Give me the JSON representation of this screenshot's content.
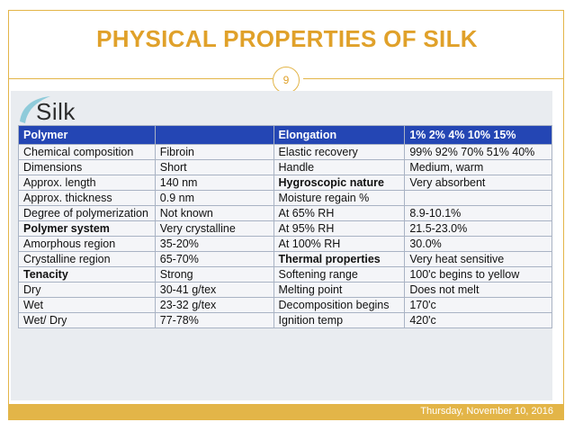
{
  "slide": {
    "title": "PHYSICAL PROPERTIES OF SILK",
    "page_number": "9",
    "date": "Thursday, November 10, 2016"
  },
  "logo": {
    "text": "Silk"
  },
  "table": {
    "header": [
      "Polymer",
      "",
      "Elongation",
      "1% 2% 4% 10% 15%"
    ],
    "rows": [
      {
        "cells": [
          "Chemical composition",
          "Fibroin",
          "Elastic recovery",
          "99% 92% 70% 51% 40%"
        ],
        "bold": []
      },
      {
        "cells": [
          "Dimensions",
          "Short",
          "Handle",
          "Medium, warm"
        ],
        "bold": []
      },
      {
        "cells": [
          "Approx. length",
          "140 nm",
          "Hygroscopic nature",
          "Very absorbent"
        ],
        "bold": [
          2
        ]
      },
      {
        "cells": [
          "Approx. thickness",
          "0.9 nm",
          "Moisture regain %",
          ""
        ],
        "bold": []
      },
      {
        "cells": [
          "Degree of polymerization",
          "Not known",
          "At 65% RH",
          "8.9-10.1%"
        ],
        "bold": []
      },
      {
        "cells": [
          "Polymer system",
          "Very crystalline",
          "At 95% RH",
          "21.5-23.0%"
        ],
        "bold": [
          0
        ]
      },
      {
        "cells": [
          "Amorphous region",
          "35-20%",
          "At 100% RH",
          "30.0%"
        ],
        "bold": []
      },
      {
        "cells": [
          "Crystalline region",
          "65-70%",
          "Thermal properties",
          "Very heat sensitive"
        ],
        "bold": [
          2
        ]
      },
      {
        "cells": [
          "Tenacity",
          "Strong",
          "Softening range",
          "100'c begins to yellow"
        ],
        "bold": [
          0
        ]
      },
      {
        "cells": [
          "Dry",
          "30-41 g/tex",
          "Melting point",
          "Does not melt"
        ],
        "bold": []
      },
      {
        "cells": [
          "Wet",
          "23-32 g/tex",
          "Decomposition begins",
          "170'c"
        ],
        "bold": []
      },
      {
        "cells": [
          "Wet/ Dry",
          "77-78%",
          "Ignition temp",
          "420'c"
        ],
        "bold": []
      }
    ]
  },
  "colors": {
    "accent": "#e3b548",
    "title": "#e0a12a",
    "table_header": "#2446b4"
  }
}
